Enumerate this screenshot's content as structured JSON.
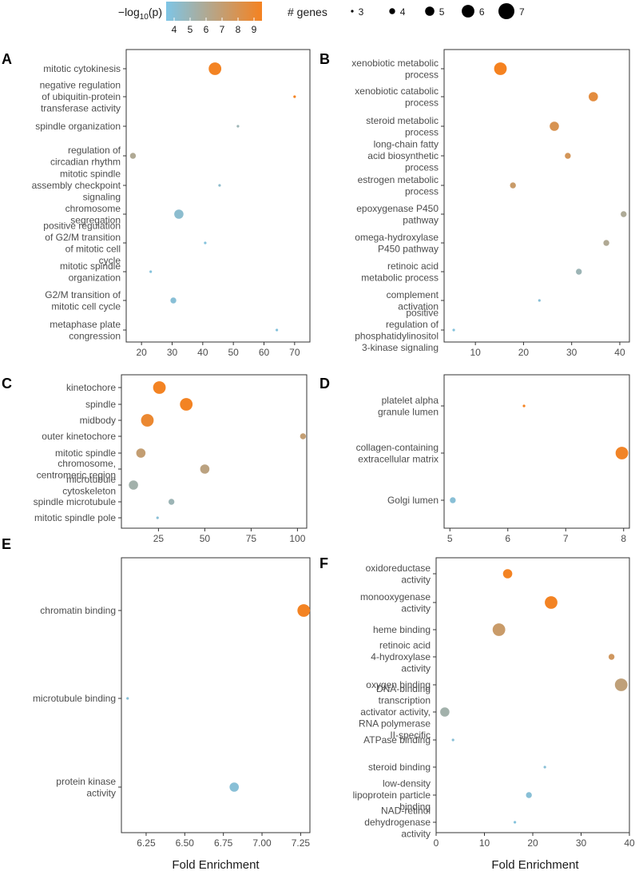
{
  "legend": {
    "color_title_prefix": "−log",
    "color_title_sub": "10",
    "color_title_suffix": "(p)",
    "color_ticks": [
      "4",
      "5",
      "6",
      "7",
      "8",
      "9"
    ],
    "color_range": [
      3.5,
      9.5
    ],
    "color_low": "#7ec5e6",
    "color_high": "#f58220",
    "size_title": "# genes",
    "size_values": [
      3,
      4,
      5,
      6,
      7
    ]
  },
  "axis_title": "Fold Enrichment",
  "colors": {
    "panel_border": "#333333",
    "tick_text": "#4d4d4d",
    "legend_text": "#1a1a1a"
  },
  "chart_data": [
    {
      "panel": "A",
      "type": "scatter",
      "xlim": [
        15,
        75
      ],
      "xticks": [
        20,
        30,
        40,
        50,
        60,
        70
      ],
      "categories": [
        {
          "lines": [
            "mitotic cytokinesis"
          ],
          "x": 44,
          "genes": 6,
          "logp": 9.4
        },
        {
          "lines": [
            "negative regulation",
            "of ubiquitin-protein",
            "transferase activity"
          ],
          "x": 70,
          "genes": 3,
          "logp": 9.5
        },
        {
          "lines": [
            "spindle organization"
          ],
          "x": 51.5,
          "genes": 3,
          "logp": 5.0
        },
        {
          "lines": [
            "regulation of",
            "circadian rhythm"
          ],
          "x": 17.2,
          "genes": 4,
          "logp": 6.0
        },
        {
          "lines": [
            "mitotic spindle",
            "assembly checkpoint",
            "signaling"
          ],
          "x": 45.5,
          "genes": 3,
          "logp": 4.3
        },
        {
          "lines": [
            "chromosome",
            "segregation"
          ],
          "x": 32.2,
          "genes": 5,
          "logp": 4.2
        },
        {
          "lines": [
            "positive regulation",
            "of G2/M transition",
            "of mitotic cell",
            "cycle"
          ],
          "x": 40.8,
          "genes": 3,
          "logp": 3.8
        },
        {
          "lines": [
            "mitotic spindle",
            "organization"
          ],
          "x": 23,
          "genes": 3,
          "logp": 3.8
        },
        {
          "lines": [
            "G2/M transition of",
            "mitotic cell cycle"
          ],
          "x": 30.4,
          "genes": 4,
          "logp": 4.0
        },
        {
          "lines": [
            "metaphase plate",
            "congression"
          ],
          "x": 64.2,
          "genes": 3,
          "logp": 3.8
        }
      ]
    },
    {
      "panel": "B",
      "type": "scatter",
      "xlim": [
        3.5,
        42
      ],
      "xticks": [
        10,
        20,
        30,
        40
      ],
      "categories": [
        {
          "lines": [
            "xenobiotic metabolic",
            "process"
          ],
          "x": 15.2,
          "genes": 6,
          "logp": 9.5
        },
        {
          "lines": [
            "xenobiotic catabolic",
            "process"
          ],
          "x": 34.5,
          "genes": 5,
          "logp": 8.6
        },
        {
          "lines": [
            "steroid metabolic",
            "process"
          ],
          "x": 26.4,
          "genes": 5,
          "logp": 8.0
        },
        {
          "lines": [
            "long-chain fatty",
            "acid biosynthetic",
            "process"
          ],
          "x": 29.2,
          "genes": 4,
          "logp": 7.8
        },
        {
          "lines": [
            "estrogen metabolic",
            "process"
          ],
          "x": 17.8,
          "genes": 4,
          "logp": 7.3
        },
        {
          "lines": [
            "epoxygenase P450",
            "pathway"
          ],
          "x": 40.8,
          "genes": 4,
          "logp": 5.9
        },
        {
          "lines": [
            "omega-hydroxylase",
            "P450 pathway"
          ],
          "x": 37.2,
          "genes": 4,
          "logp": 6.0
        },
        {
          "lines": [
            "retinoic acid",
            "metabolic process"
          ],
          "x": 31.5,
          "genes": 4,
          "logp": 5.0
        },
        {
          "lines": [
            "complement",
            "activation"
          ],
          "x": 23.3,
          "genes": 3,
          "logp": 4.0
        },
        {
          "lines": [
            "positive",
            "regulation of",
            "phosphatidylinositol",
            "3-kinase signaling"
          ],
          "x": 5.5,
          "genes": 3,
          "logp": 3.8
        }
      ]
    },
    {
      "panel": "C",
      "type": "scatter",
      "xlim": [
        5,
        105
      ],
      "xticks": [
        25,
        50,
        75,
        100
      ],
      "categories": [
        {
          "lines": [
            "kinetochore"
          ],
          "x": 25.5,
          "genes": 6,
          "logp": 9.4
        },
        {
          "lines": [
            "spindle"
          ],
          "x": 40,
          "genes": 6,
          "logp": 9.4
        },
        {
          "lines": [
            "midbody"
          ],
          "x": 19,
          "genes": 6,
          "logp": 9.0
        },
        {
          "lines": [
            "outer kinetochore"
          ],
          "x": 103,
          "genes": 4,
          "logp": 7.0
        },
        {
          "lines": [
            "mitotic spindle"
          ],
          "x": 15.5,
          "genes": 5,
          "logp": 7.0
        },
        {
          "lines": [
            "chromosome,",
            "centromeric region"
          ],
          "x": 50,
          "genes": 5,
          "logp": 6.6
        },
        {
          "lines": [
            "microtubule",
            "cytoskeleton"
          ],
          "x": 11.5,
          "genes": 5,
          "logp": 5.3
        },
        {
          "lines": [
            "spindle microtubule"
          ],
          "x": 32,
          "genes": 4,
          "logp": 5.0
        },
        {
          "lines": [
            "mitotic spindle pole"
          ],
          "x": 24.5,
          "genes": 3,
          "logp": 4.0
        }
      ]
    },
    {
      "panel": "D",
      "type": "scatter",
      "xlim": [
        4.9,
        8.1
      ],
      "xticks": [
        5,
        6,
        7,
        8
      ],
      "categories": [
        {
          "lines": [
            "platelet alpha",
            "granule lumen"
          ],
          "x": 6.28,
          "genes": 3,
          "logp": 9.5
        },
        {
          "lines": [
            "collagen-containing",
            "extracellular matrix"
          ],
          "x": 7.97,
          "genes": 6,
          "logp": 9.3
        },
        {
          "lines": [
            "Golgi lumen"
          ],
          "x": 5.05,
          "genes": 4,
          "logp": 4.0
        }
      ]
    },
    {
      "panel": "E",
      "type": "scatter",
      "xlim": [
        6.09,
        7.31
      ],
      "xticks": [
        6.25,
        6.5,
        6.75,
        7.0,
        7.25
      ],
      "xtick_labels": [
        "6.25",
        "6.50",
        "6.75",
        "7.00",
        "7.25"
      ],
      "categories": [
        {
          "lines": [
            "chromatin binding"
          ],
          "x": 7.27,
          "genes": 6,
          "logp": 9.4
        },
        {
          "lines": [
            "microtubule binding"
          ],
          "x": 6.13,
          "genes": 3,
          "logp": 4.0
        },
        {
          "lines": [
            "protein kinase",
            "activity"
          ],
          "x": 6.82,
          "genes": 5,
          "logp": 4.0
        }
      ]
    },
    {
      "panel": "F",
      "type": "scatter",
      "xlim": [
        0,
        40
      ],
      "xticks": [
        0,
        10,
        20,
        30,
        40
      ],
      "categories": [
        {
          "lines": [
            "oxidoreductase",
            "activity"
          ],
          "x": 14.8,
          "genes": 5,
          "logp": 9.4
        },
        {
          "lines": [
            "monooxygenase",
            "activity"
          ],
          "x": 23.8,
          "genes": 6,
          "logp": 9.4
        },
        {
          "lines": [
            "heme binding"
          ],
          "x": 13,
          "genes": 6,
          "logp": 7.3
        },
        {
          "lines": [
            "retinoic acid",
            "4-hydroxylase",
            "activity"
          ],
          "x": 36.3,
          "genes": 4,
          "logp": 7.6
        },
        {
          "lines": [
            "oxygen binding"
          ],
          "x": 38.3,
          "genes": 6,
          "logp": 6.8
        },
        {
          "lines": [
            "DNA-binding",
            "transcription",
            "activator activity,",
            "RNA polymerase",
            "II-specific"
          ],
          "x": 1.8,
          "genes": 5,
          "logp": 5.3
        },
        {
          "lines": [
            "ATPase binding"
          ],
          "x": 3.5,
          "genes": 3,
          "logp": 4.0
        },
        {
          "lines": [
            "steroid binding"
          ],
          "x": 22.5,
          "genes": 3,
          "logp": 4.0
        },
        {
          "lines": [
            "low-density",
            "lipoprotein particle",
            "binding"
          ],
          "x": 19.2,
          "genes": 4,
          "logp": 4.0
        },
        {
          "lines": [
            "NAD-retinol",
            "dehydrogenase",
            "activity"
          ],
          "x": 16.3,
          "genes": 3,
          "logp": 3.8
        }
      ]
    }
  ]
}
